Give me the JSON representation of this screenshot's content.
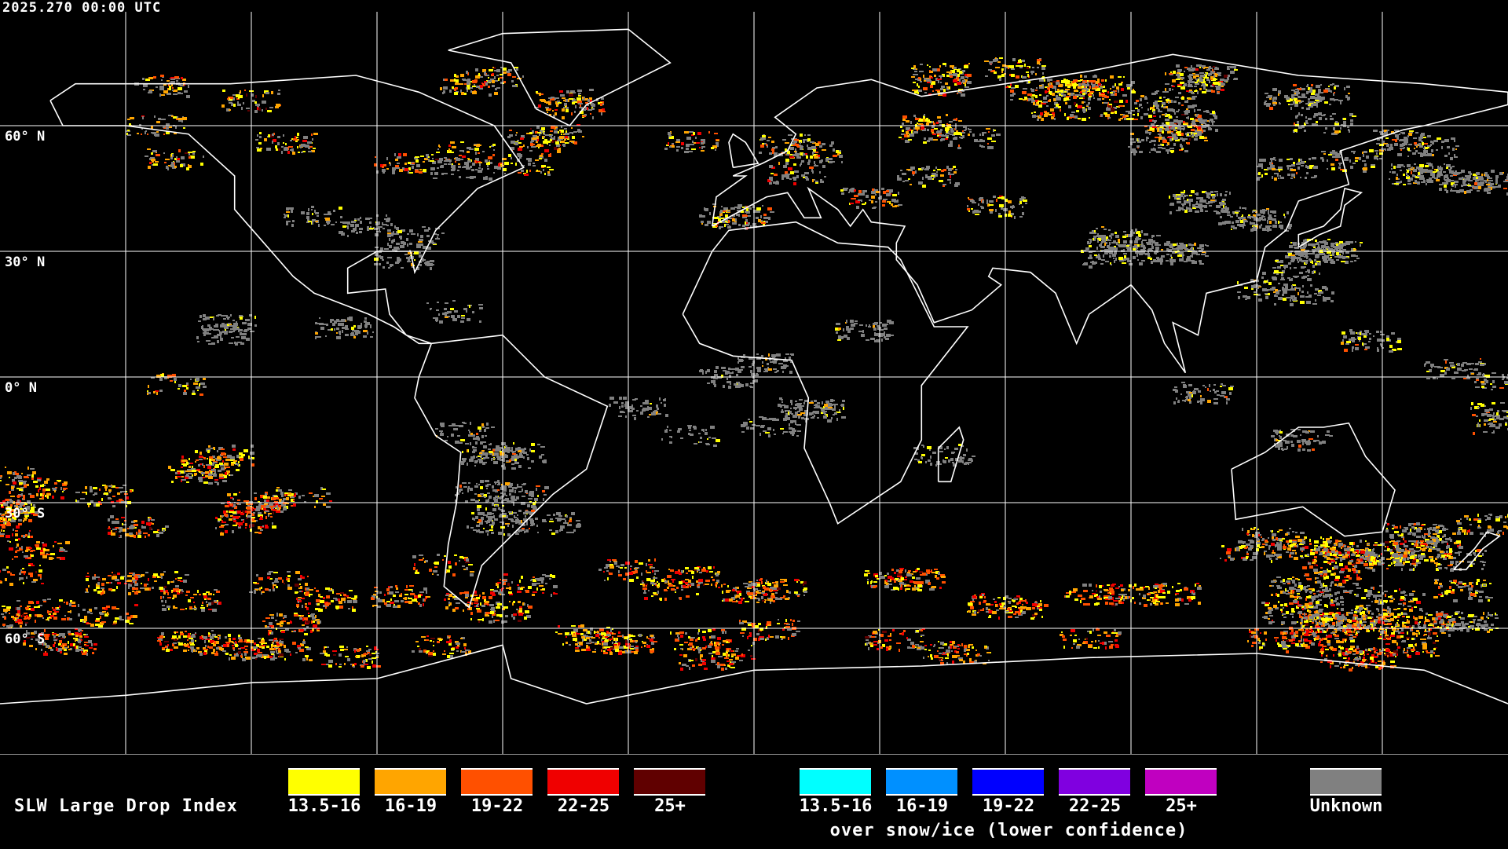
{
  "header": {
    "timestamp": "2025.270 00:00 UTC"
  },
  "map": {
    "projection": "equirectangular",
    "lat_labels": [
      "60° N",
      "30° N",
      "0° N",
      "30° S",
      "60° S"
    ],
    "background_color": "#000000",
    "coastline_color": "#ffffff",
    "grid_color": "#ffffff"
  },
  "legend": {
    "title": "SLW Large Drop Index",
    "standard": [
      {
        "label": "13.5-16",
        "color": "#ffff00"
      },
      {
        "label": "16-19",
        "color": "#ffa500"
      },
      {
        "label": "19-22",
        "color": "#ff5000"
      },
      {
        "label": "22-25",
        "color": "#f00000"
      },
      {
        "label": "25+",
        "color": "#600000"
      }
    ],
    "snow_ice": [
      {
        "label": "13.5-16",
        "color": "#00ffff"
      },
      {
        "label": "16-19",
        "color": "#0090ff"
      },
      {
        "label": "19-22",
        "color": "#0000ff"
      },
      {
        "label": "22-25",
        "color": "#8000e0"
      },
      {
        "label": "25+",
        "color": "#c000c0"
      }
    ],
    "snow_ice_note": "over snow/ice (lower confidence)",
    "unknown": {
      "label": "Unknown",
      "color": "#808080"
    }
  }
}
